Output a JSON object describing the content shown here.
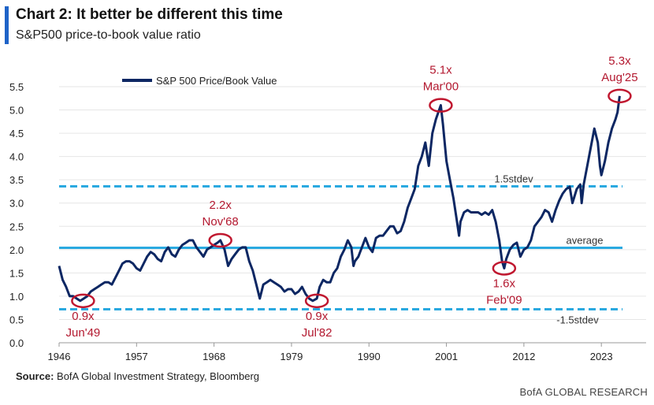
{
  "header": {
    "title": "Chart 2: It better be different this time",
    "subtitle": "S&P500 price-to-book value ratio"
  },
  "source": {
    "label": "Source:",
    "text": "BofA Global Investment Strategy, Bloomberg"
  },
  "footer": "BofA GLOBAL RESEARCH",
  "colors": {
    "series": "#0d2763",
    "reference": "#2aa9e0",
    "annotation": "#c0172f",
    "annotation_text": "#b3182f"
  },
  "chart_data": {
    "type": "line",
    "xlabel": "",
    "ylabel": "",
    "xlim": [
      1946,
      2026
    ],
    "ylim": [
      0,
      5.5
    ],
    "x_ticks": [
      "1946",
      "1957",
      "1968",
      "1979",
      "1990",
      "2001",
      "2012",
      "2023"
    ],
    "y_ticks": [
      "0.0",
      "0.5",
      "1.0",
      "1.5",
      "2.0",
      "2.5",
      "3.0",
      "3.5",
      "4.0",
      "4.5",
      "5.0",
      "5.5"
    ],
    "legend": {
      "position": "top-left",
      "entries": [
        "S&P 500 Price/Book Value"
      ]
    },
    "series": [
      {
        "name": "S&P 500 Price/Book Value",
        "x": [
          1946.0,
          1946.5,
          1947.0,
          1947.5,
          1948.0,
          1948.5,
          1949.0,
          1949.5,
          1950.0,
          1950.5,
          1951.0,
          1951.5,
          1952.0,
          1952.5,
          1953.0,
          1953.5,
          1954.0,
          1954.5,
          1955.0,
          1955.5,
          1956.0,
          1956.5,
          1957.0,
          1957.5,
          1958.0,
          1958.5,
          1959.0,
          1959.5,
          1960.0,
          1960.5,
          1961.0,
          1961.5,
          1962.0,
          1962.5,
          1963.0,
          1963.5,
          1964.0,
          1964.5,
          1965.0,
          1965.5,
          1966.0,
          1966.5,
          1967.0,
          1967.5,
          1968.0,
          1968.5,
          1968.9,
          1969.5,
          1970.0,
          1970.5,
          1971.0,
          1971.5,
          1972.0,
          1972.5,
          1973.0,
          1973.5,
          1974.0,
          1974.5,
          1975.0,
          1975.5,
          1976.0,
          1976.5,
          1977.0,
          1977.5,
          1978.0,
          1978.5,
          1979.0,
          1979.5,
          1980.0,
          1980.5,
          1981.0,
          1981.5,
          1982.0,
          1982.6,
          1983.0,
          1983.5,
          1984.0,
          1984.5,
          1985.0,
          1985.5,
          1986.0,
          1986.5,
          1987.0,
          1987.5,
          1987.8,
          1988.0,
          1988.5,
          1989.0,
          1989.5,
          1990.0,
          1990.5,
          1991.0,
          1991.5,
          1992.0,
          1992.5,
          1993.0,
          1993.5,
          1994.0,
          1994.5,
          1995.0,
          1995.5,
          1996.0,
          1996.5,
          1997.0,
          1997.5,
          1998.0,
          1998.5,
          1999.0,
          1999.5,
          2000.2,
          2000.5,
          2001.0,
          2001.5,
          2002.0,
          2002.5,
          2002.8,
          2003.0,
          2003.5,
          2004.0,
          2004.5,
          2005.0,
          2005.5,
          2006.0,
          2006.5,
          2007.0,
          2007.5,
          2008.0,
          2008.5,
          2008.9,
          2009.2,
          2009.5,
          2010.0,
          2010.5,
          2011.0,
          2011.5,
          2012.0,
          2012.5,
          2013.0,
          2013.5,
          2014.0,
          2014.5,
          2015.0,
          2015.5,
          2016.0,
          2016.5,
          2017.0,
          2017.5,
          2018.0,
          2018.5,
          2018.9,
          2019.5,
          2020.0,
          2020.2,
          2020.5,
          2021.0,
          2021.5,
          2022.0,
          2022.5,
          2022.8,
          2023.0,
          2023.5,
          2024.0,
          2024.5,
          2025.0,
          2025.3,
          2025.6
        ],
        "values": [
          1.65,
          1.35,
          1.2,
          1.0,
          1.0,
          0.95,
          0.9,
          0.95,
          1.0,
          1.1,
          1.15,
          1.2,
          1.25,
          1.3,
          1.3,
          1.25,
          1.4,
          1.55,
          1.7,
          1.75,
          1.75,
          1.7,
          1.6,
          1.55,
          1.7,
          1.85,
          1.95,
          1.9,
          1.8,
          1.75,
          1.95,
          2.05,
          1.9,
          1.85,
          2.0,
          2.1,
          2.15,
          2.2,
          2.2,
          2.05,
          1.95,
          1.85,
          2.0,
          2.05,
          2.1,
          2.15,
          2.2,
          2.0,
          1.65,
          1.8,
          1.9,
          2.0,
          2.05,
          2.05,
          1.75,
          1.55,
          1.25,
          0.95,
          1.25,
          1.3,
          1.35,
          1.3,
          1.25,
          1.2,
          1.1,
          1.15,
          1.15,
          1.05,
          1.1,
          1.2,
          1.05,
          0.95,
          0.9,
          0.95,
          1.2,
          1.35,
          1.3,
          1.3,
          1.5,
          1.6,
          1.85,
          2.0,
          2.2,
          2.05,
          1.65,
          1.75,
          1.85,
          2.05,
          2.25,
          2.05,
          1.95,
          2.25,
          2.3,
          2.3,
          2.4,
          2.5,
          2.5,
          2.35,
          2.4,
          2.6,
          2.9,
          3.1,
          3.3,
          3.8,
          4.0,
          4.3,
          3.8,
          4.5,
          4.8,
          5.1,
          4.7,
          3.9,
          3.5,
          3.1,
          2.6,
          2.3,
          2.6,
          2.8,
          2.85,
          2.8,
          2.8,
          2.8,
          2.75,
          2.8,
          2.75,
          2.85,
          2.6,
          2.2,
          1.75,
          1.6,
          1.8,
          2.0,
          2.1,
          2.15,
          1.85,
          2.0,
          2.05,
          2.2,
          2.5,
          2.6,
          2.7,
          2.85,
          2.8,
          2.6,
          2.85,
          3.05,
          3.2,
          3.3,
          3.35,
          3.0,
          3.3,
          3.4,
          3.0,
          3.4,
          3.8,
          4.2,
          4.6,
          4.3,
          3.8,
          3.6,
          3.9,
          4.3,
          4.6,
          4.8,
          4.95,
          5.3
        ]
      }
    ],
    "reference_lines": [
      {
        "label": "1.5stdev",
        "value": 3.36,
        "style": "dashed"
      },
      {
        "label": "average",
        "value": 2.04,
        "style": "solid"
      },
      {
        "label": "-1.5stdev",
        "value": 0.72,
        "style": "dashed"
      }
    ],
    "annotations": [
      {
        "value_text": "0.9x",
        "date_text": "Jun'49",
        "x": 1949.4,
        "y": 0.9,
        "text_side": "below"
      },
      {
        "value_text": "2.2x",
        "date_text": "Nov'68",
        "x": 1968.9,
        "y": 2.2,
        "text_side": "above"
      },
      {
        "value_text": "0.9x",
        "date_text": "Jul'82",
        "x": 1982.6,
        "y": 0.9,
        "text_side": "below"
      },
      {
        "value_text": "5.1x",
        "date_text": "Mar'00",
        "x": 2000.2,
        "y": 5.1,
        "text_side": "above"
      },
      {
        "value_text": "1.6x",
        "date_text": "Feb'09",
        "x": 2009.2,
        "y": 1.6,
        "text_side": "below"
      },
      {
        "value_text": "5.3x",
        "date_text": "Aug'25",
        "x": 2025.6,
        "y": 5.3,
        "text_side": "above"
      }
    ]
  }
}
